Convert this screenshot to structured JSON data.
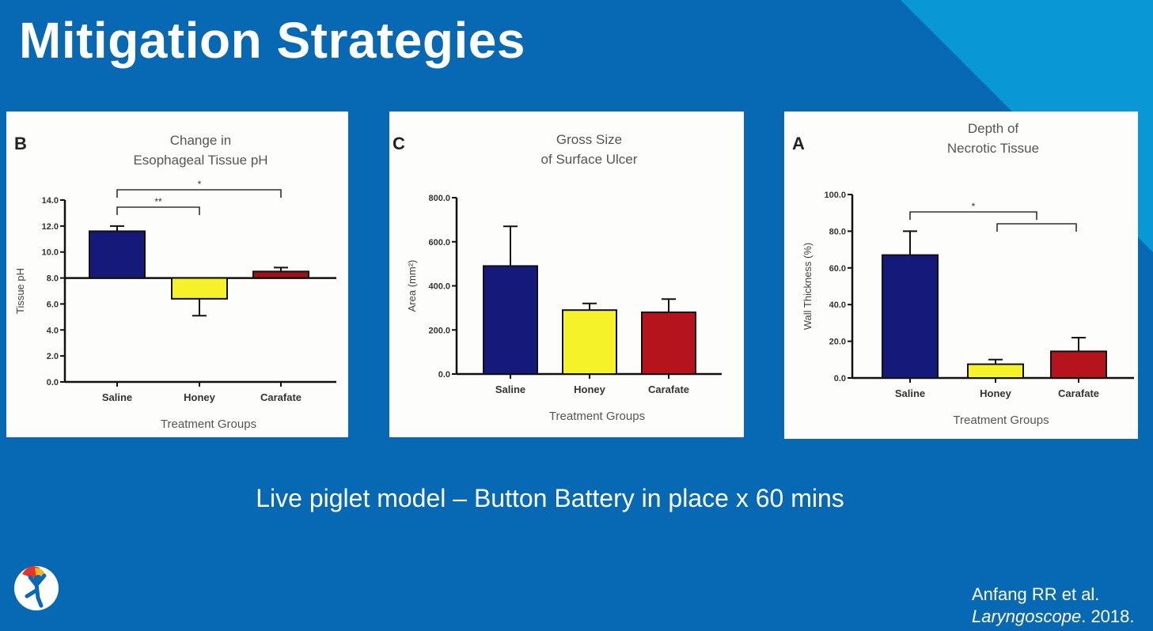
{
  "slide": {
    "title": "Mitigation Strategies",
    "caption": "Live piglet model – Button Battery in place x 60 mins",
    "citation": {
      "authors": "Anfang RR et al.",
      "journal": "Laryngoscope",
      "year": ". 2018."
    },
    "colors": {
      "background": "#0769b3",
      "accent": "#0a97d6"
    },
    "logo": "child-figure-logo-icon"
  },
  "chart_data": [
    {
      "type": "bar",
      "panel_letter": "B",
      "title": [
        "Change in",
        "Esophageal Tissue pH"
      ],
      "xlabel": "Treatment Groups",
      "ylabel": "Tissue pH",
      "categories": [
        "Saline",
        "Honey",
        "Carafate"
      ],
      "values": [
        11.6,
        6.4,
        8.5
      ],
      "error_upper": [
        12.0,
        5.1,
        8.8
      ],
      "baseline": 8.0,
      "ylim": [
        0,
        14
      ],
      "yticks": [
        "0.0",
        "2.0",
        "4.0",
        "6.0",
        "8.0",
        "10.0",
        "12.0",
        "14.0"
      ],
      "colors": [
        "#14197a",
        "#f5f22a",
        "#9b1218"
      ],
      "significance": [
        {
          "groups": [
            "Saline",
            "Carafate"
          ],
          "label": "*"
        },
        {
          "groups": [
            "Saline",
            "Honey"
          ],
          "label": "**"
        }
      ],
      "grid": false
    },
    {
      "type": "bar",
      "panel_letter": "C",
      "title": [
        "Gross Size",
        "of Surface Ulcer"
      ],
      "xlabel": "Treatment Groups",
      "ylabel": "Area (mm²)",
      "categories": [
        "Saline",
        "Honey",
        "Carafate"
      ],
      "values": [
        490,
        290,
        280
      ],
      "error_upper": [
        670,
        320,
        340
      ],
      "baseline": 0,
      "ylim": [
        0,
        800
      ],
      "yticks": [
        "0.0",
        "200.0",
        "400.0",
        "600.0",
        "800.0"
      ],
      "colors": [
        "#14197a",
        "#f5f22a",
        "#b5141c"
      ],
      "significance": [],
      "grid": false
    },
    {
      "type": "bar",
      "panel_letter": "A",
      "title": [
        "Depth of",
        "Necrotic Tissue"
      ],
      "xlabel": "Treatment Groups",
      "ylabel": "Wall Thickness (%)",
      "categories": [
        "Saline",
        "Honey",
        "Carafate"
      ],
      "values": [
        67,
        7.5,
        14.5
      ],
      "error_upper": [
        80,
        10,
        22
      ],
      "baseline": 0,
      "ylim": [
        0,
        100
      ],
      "yticks": [
        "0.0",
        "20.0",
        "40.0",
        "60.0",
        "80.0",
        "100.0"
      ],
      "colors": [
        "#14197a",
        "#f5f22a",
        "#b5141c"
      ],
      "significance": [
        {
          "groups": [
            "Saline",
            "Honey + Carafate"
          ],
          "label": "*"
        }
      ],
      "grid": false
    }
  ]
}
